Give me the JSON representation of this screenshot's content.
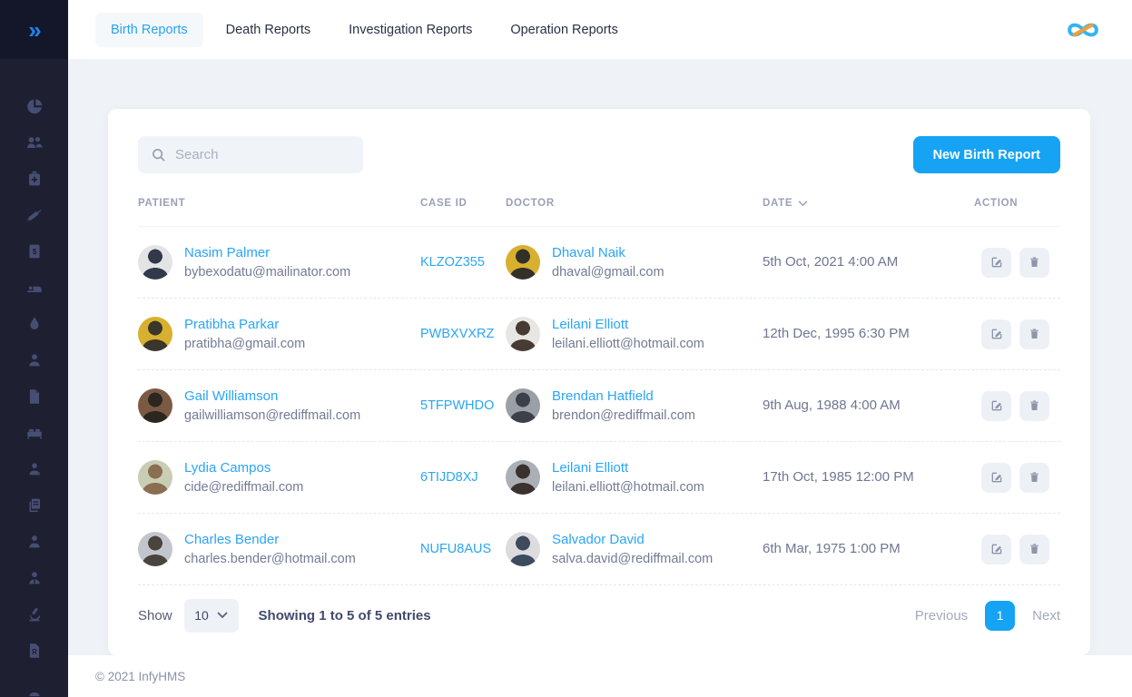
{
  "colors": {
    "accent": "#16a3f4",
    "link": "#2aa5f7",
    "sidebar_bg": "#1e2031",
    "sidebar_icon": "#474e74"
  },
  "sidebar": {
    "toggle_icon": "double-chevron-right",
    "items": [
      {
        "icon": "pie-chart-icon"
      },
      {
        "icon": "users-icon"
      },
      {
        "icon": "medical-kit-icon"
      },
      {
        "icon": "syringe-icon"
      },
      {
        "icon": "invoice-icon"
      },
      {
        "icon": "bed-icon"
      },
      {
        "icon": "blood-drop-icon"
      },
      {
        "icon": "nurse-icon"
      },
      {
        "icon": "document-icon"
      },
      {
        "icon": "double-bed-icon"
      },
      {
        "icon": "doctor-icon"
      },
      {
        "icon": "documents-icon"
      },
      {
        "icon": "patient-icon"
      },
      {
        "icon": "staff-icon"
      },
      {
        "icon": "microscope-icon"
      },
      {
        "icon": "prescription-icon"
      },
      {
        "icon": "radiology-icon"
      }
    ]
  },
  "header": {
    "tabs": [
      {
        "label": "Birth Reports",
        "active": true
      },
      {
        "label": "Death Reports",
        "active": false
      },
      {
        "label": "Investigation Reports",
        "active": false
      },
      {
        "label": "Operation Reports",
        "active": false
      }
    ],
    "logo_icon": "infinity-logo"
  },
  "toolbar": {
    "search_placeholder": "Search",
    "new_button_label": "New Birth Report"
  },
  "table": {
    "columns": [
      {
        "label": "PATIENT",
        "sortable": false
      },
      {
        "label": "CASE ID",
        "sortable": false
      },
      {
        "label": "DOCTOR",
        "sortable": false
      },
      {
        "label": "DATE",
        "sortable": true
      },
      {
        "label": "ACTION",
        "sortable": false
      }
    ],
    "rows": [
      {
        "patient": {
          "name": "Nasim Palmer",
          "email": "bybexodatu@mailinator.com",
          "avatar": {
            "bg": "#e3e4e6",
            "fg": "#32394a"
          }
        },
        "case_id": "KLZOZ355",
        "doctor": {
          "name": "Dhaval Naik",
          "email": "dhaval@gmail.com",
          "avatar": {
            "bg": "#d8b02f",
            "fg": "#33302a"
          }
        },
        "date": "5th Oct, 2021 4:00 AM"
      },
      {
        "patient": {
          "name": "Pratibha Parkar",
          "email": "pratibha@gmail.com",
          "avatar": {
            "bg": "#d8b02f",
            "fg": "#3a362c"
          }
        },
        "case_id": "PWBXVXRZ",
        "doctor": {
          "name": "Leilani Elliott",
          "email": "leilani.elliott@hotmail.com",
          "avatar": {
            "bg": "#e8e6e2",
            "fg": "#473b33"
          }
        },
        "date": "12th Dec, 1995 6:30 PM"
      },
      {
        "patient": {
          "name": "Gail Williamson",
          "email": "gailwilliamson@rediffmail.com",
          "avatar": {
            "bg": "#7b5a44",
            "fg": "#2c2620"
          }
        },
        "case_id": "5TFPWHDO",
        "doctor": {
          "name": "Brendan Hatfield",
          "email": "brendon@rediffmail.com",
          "avatar": {
            "bg": "#9aa0a6",
            "fg": "#3c4048"
          }
        },
        "date": "9th Aug, 1988 4:00 AM"
      },
      {
        "patient": {
          "name": "Lydia Campos",
          "email": "cide@rediffmail.com",
          "avatar": {
            "bg": "#c9cdb4",
            "fg": "#8a6e52"
          }
        },
        "case_id": "6TIJD8XJ",
        "doctor": {
          "name": "Leilani Elliott",
          "email": "leilani.elliott@hotmail.com",
          "avatar": {
            "bg": "#aab0b6",
            "fg": "#39322e"
          }
        },
        "date": "17th Oct, 1985 12:00 PM"
      },
      {
        "patient": {
          "name": "Charles Bender",
          "email": "charles.bender@hotmail.com",
          "avatar": {
            "bg": "#c2c6cc",
            "fg": "#4a443e"
          }
        },
        "case_id": "NUFU8AUS",
        "doctor": {
          "name": "Salvador David",
          "email": "salva.david@rediffmail.com",
          "avatar": {
            "bg": "#dcdcde",
            "fg": "#3e4a5e"
          }
        },
        "date": "6th Mar, 1975 1:00 PM"
      }
    ]
  },
  "pagination": {
    "show_label": "Show",
    "page_size": "10",
    "summary": "Showing 1 to 5 of 5 entries",
    "previous_label": "Previous",
    "current_page": "1",
    "next_label": "Next"
  },
  "footer": {
    "copyright": "© 2021  InfyHMS"
  }
}
